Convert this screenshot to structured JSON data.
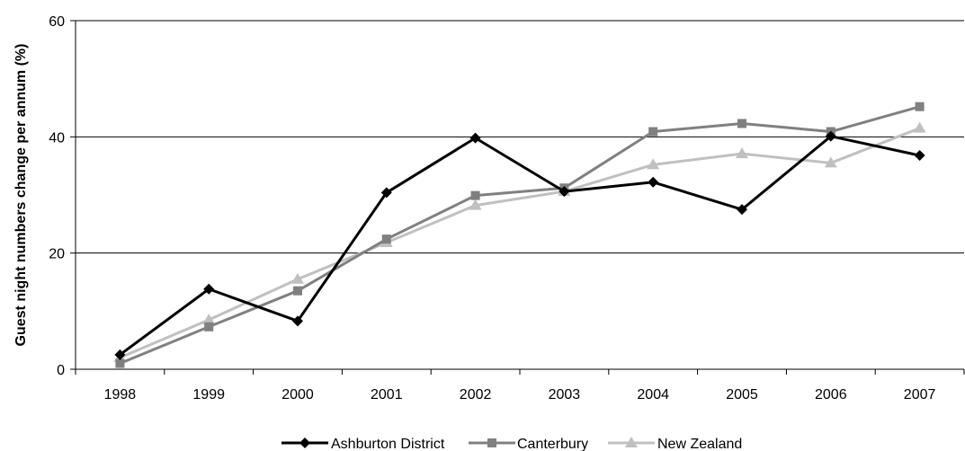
{
  "chart_data": {
    "type": "line",
    "title": "",
    "xlabel": "",
    "ylabel": "Guest night numbers change per annum (%)",
    "ylim": [
      0,
      60
    ],
    "yticks": [
      0,
      20,
      40,
      60
    ],
    "grid": "horizontal major gridlines",
    "legend_position": "bottom",
    "categories": [
      "1998",
      "1999",
      "2000",
      "2001",
      "2002",
      "2003",
      "2004",
      "2005",
      "2006",
      "2007"
    ],
    "series": [
      {
        "name": "Ashburton District",
        "color": "#000000",
        "marker": "diamond",
        "values": [
          2.5,
          13.8,
          8.3,
          30.4,
          39.8,
          30.6,
          32.2,
          27.5,
          40.1,
          36.8
        ]
      },
      {
        "name": "Canterbury",
        "color": "#808080",
        "marker": "square",
        "values": [
          1.0,
          7.3,
          13.5,
          22.4,
          29.9,
          31.2,
          40.9,
          42.3,
          40.9,
          45.2
        ]
      },
      {
        "name": "New Zealand",
        "color": "#c0c0c0",
        "marker": "triangle",
        "values": [
          2.0,
          8.5,
          15.5,
          21.8,
          28.2,
          30.6,
          35.2,
          37.1,
          35.5,
          41.5
        ]
      }
    ]
  }
}
